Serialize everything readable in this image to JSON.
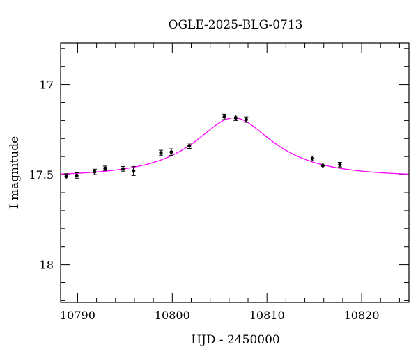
{
  "chart_data": {
    "type": "scatter",
    "title": "OGLE-2025-BLG-0713",
    "xlabel": "HJD - 2450000",
    "ylabel": "I magnitude",
    "xlim": [
      10788.2,
      10825.0
    ],
    "ylim": [
      18.21,
      16.77
    ],
    "y_inverted": true,
    "xticks": [
      10790,
      10800,
      10810,
      10820
    ],
    "yticks": [
      17,
      17.5,
      18
    ],
    "x_minor_step": 2,
    "y_minor_step": 0.1,
    "grid": false,
    "colors": {
      "points": "#000000",
      "model": "#ff00ff",
      "frame": "#000000"
    },
    "series": [
      {
        "kind": "points_with_errorbars",
        "x": [
          10788.8,
          10789.9,
          10791.8,
          10792.9,
          10794.8,
          10795.9,
          10798.8,
          10799.9,
          10801.8,
          10805.5,
          10806.7,
          10807.8,
          10814.8,
          10815.9,
          10817.7
        ],
        "y": [
          17.51,
          17.505,
          17.485,
          17.465,
          17.468,
          17.48,
          17.38,
          17.375,
          17.34,
          17.18,
          17.185,
          17.195,
          17.41,
          17.45,
          17.445
        ],
        "err": [
          0.015,
          0.015,
          0.015,
          0.012,
          0.013,
          0.025,
          0.015,
          0.018,
          0.015,
          0.015,
          0.015,
          0.015,
          0.013,
          0.013,
          0.013
        ]
      },
      {
        "kind": "model_curve",
        "baseline": 17.51,
        "peak": 17.185,
        "t0": 10806.5,
        "u0": 0.52,
        "tE": 8.5
      }
    ]
  }
}
